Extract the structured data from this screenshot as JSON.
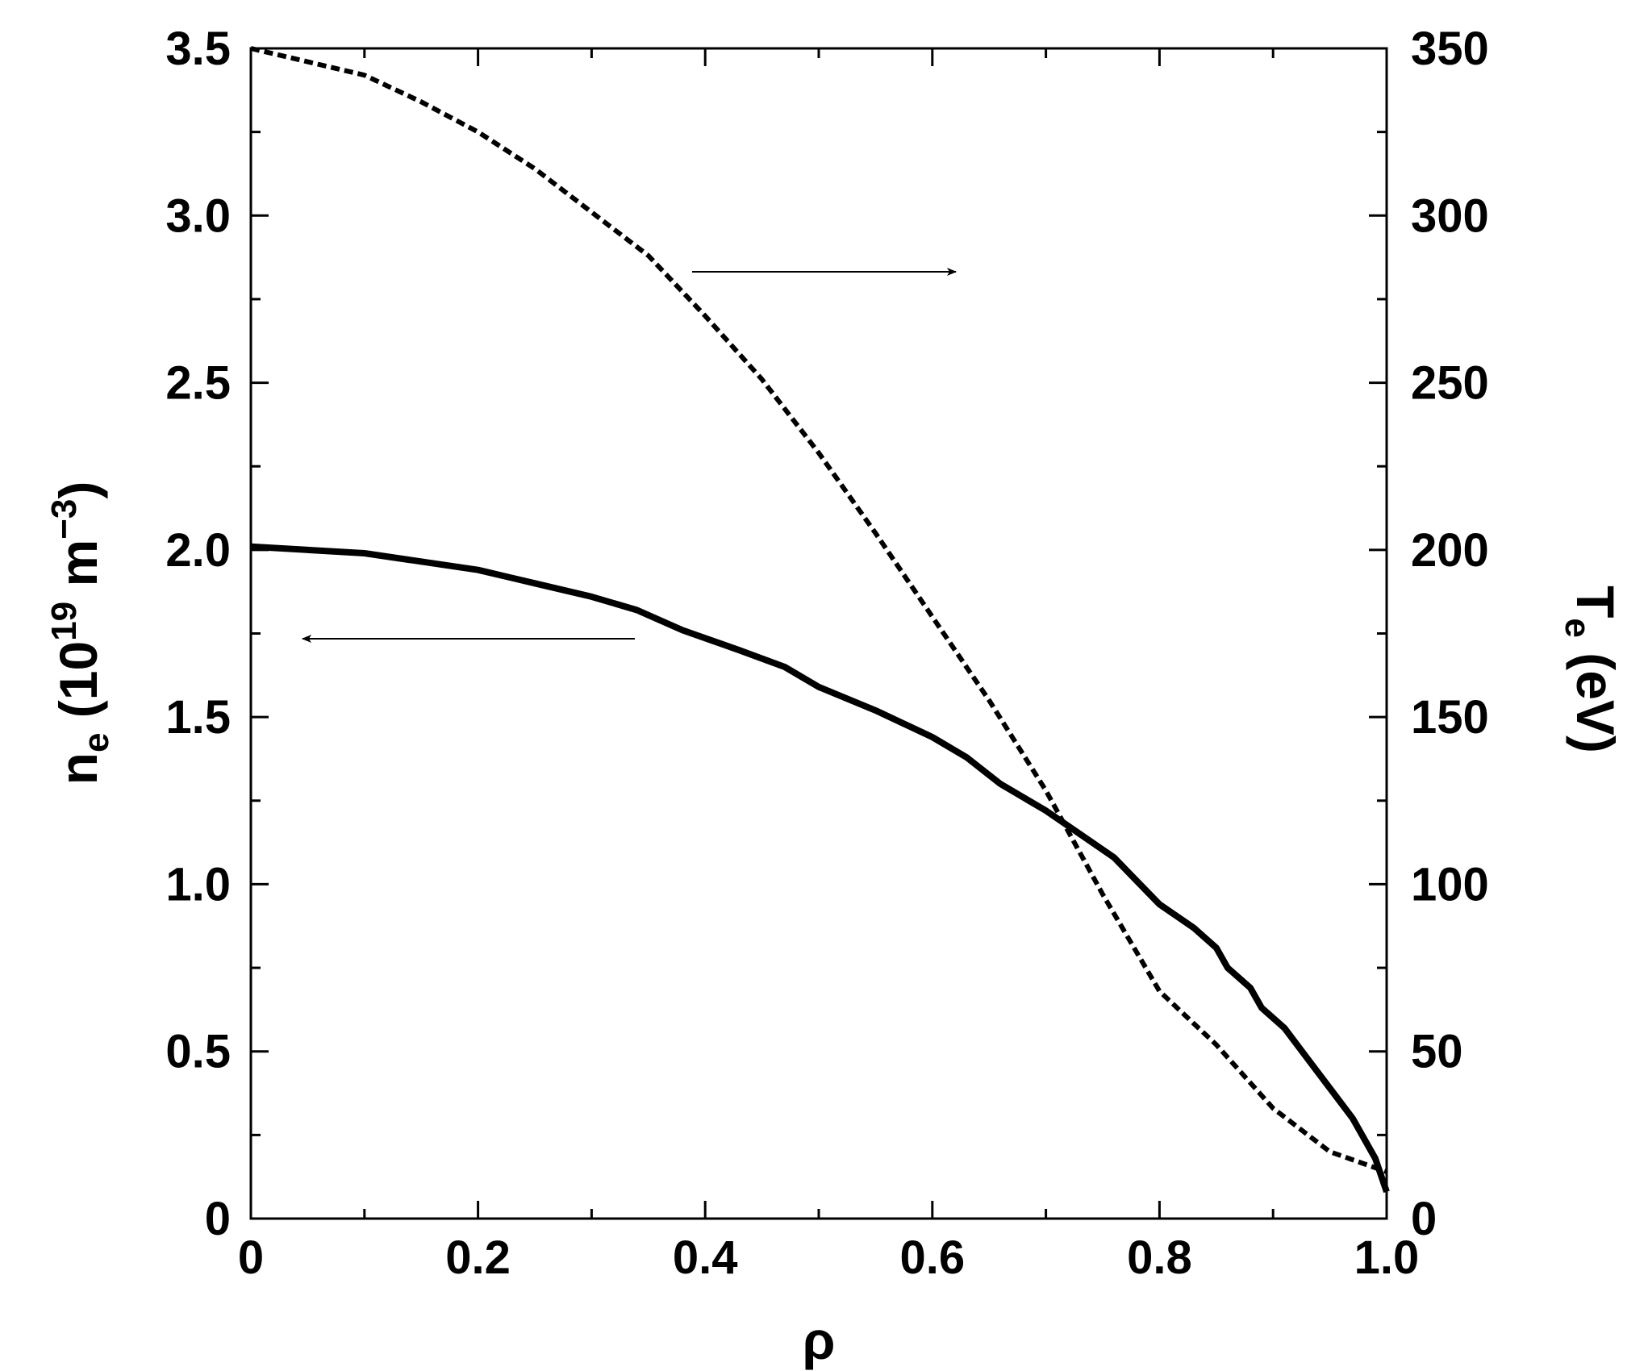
{
  "chart_data": {
    "type": "line",
    "xlabel": "ρ",
    "ylabel_left": {
      "base": "n",
      "sub": "e",
      "open": " (10",
      "sup1": "19",
      "mid": " m",
      "sup2": "−3",
      "close": ")"
    },
    "ylabel_right": {
      "base": "T",
      "sub": "e",
      "rest": " (eV)"
    },
    "xlim": [
      0,
      1.0
    ],
    "ylim_left": [
      0,
      3.5
    ],
    "ylim_right": [
      0,
      350
    ],
    "x_ticks": [
      {
        "value": 0,
        "label": "0"
      },
      {
        "value": 0.2,
        "label": "0.2"
      },
      {
        "value": 0.4,
        "label": "0.4"
      },
      {
        "value": 0.6,
        "label": "0.6"
      },
      {
        "value": 0.8,
        "label": "0.8"
      },
      {
        "value": 1.0,
        "label": "1.0"
      }
    ],
    "y_left_ticks": [
      {
        "value": 0,
        "label": "0"
      },
      {
        "value": 0.5,
        "label": "0.5"
      },
      {
        "value": 1.0,
        "label": "1.0"
      },
      {
        "value": 1.5,
        "label": "1.5"
      },
      {
        "value": 2.0,
        "label": "2.0"
      },
      {
        "value": 2.5,
        "label": "2.5"
      },
      {
        "value": 3.0,
        "label": "3.0"
      },
      {
        "value": 3.5,
        "label": "3.5"
      }
    ],
    "y_right_ticks": [
      {
        "value": 0,
        "label": "0"
      },
      {
        "value": 50,
        "label": "50"
      },
      {
        "value": 100,
        "label": "100"
      },
      {
        "value": 150,
        "label": "150"
      },
      {
        "value": 200,
        "label": "200"
      },
      {
        "value": 250,
        "label": "250"
      },
      {
        "value": 300,
        "label": "300"
      },
      {
        "value": 350,
        "label": "350"
      }
    ],
    "grid": false,
    "series": [
      {
        "axis": "left",
        "style": "solid",
        "x": [
          0,
          0.1,
          0.2,
          0.25,
          0.3,
          0.34,
          0.38,
          0.43,
          0.47,
          0.5,
          0.55,
          0.6,
          0.63,
          0.66,
          0.7,
          0.73,
          0.76,
          0.78,
          0.8,
          0.83,
          0.85,
          0.86,
          0.88,
          0.89,
          0.91,
          0.93,
          0.95,
          0.97,
          0.99,
          1.0
        ],
        "y": [
          2.01,
          1.99,
          1.94,
          1.9,
          1.86,
          1.82,
          1.76,
          1.7,
          1.65,
          1.59,
          1.52,
          1.44,
          1.38,
          1.3,
          1.22,
          1.15,
          1.08,
          1.01,
          0.94,
          0.87,
          0.81,
          0.75,
          0.69,
          0.63,
          0.57,
          0.48,
          0.39,
          0.3,
          0.18,
          0.08
        ]
      },
      {
        "axis": "right",
        "style": "dashed",
        "x": [
          0,
          0.05,
          0.1,
          0.15,
          0.2,
          0.25,
          0.3,
          0.35,
          0.4,
          0.45,
          0.5,
          0.55,
          0.6,
          0.65,
          0.7,
          0.75,
          0.8,
          0.85,
          0.9,
          0.95,
          1.0
        ],
        "y": [
          350,
          346,
          342,
          334,
          325,
          314,
          301,
          288,
          270,
          251,
          229,
          205,
          180,
          155,
          128,
          97,
          68,
          52,
          33,
          20,
          14
        ]
      }
    ],
    "annotations": [
      {
        "type": "arrow",
        "direction": "right",
        "points_to_axis": "right"
      },
      {
        "type": "arrow",
        "direction": "left",
        "points_to_axis": "left"
      }
    ]
  }
}
